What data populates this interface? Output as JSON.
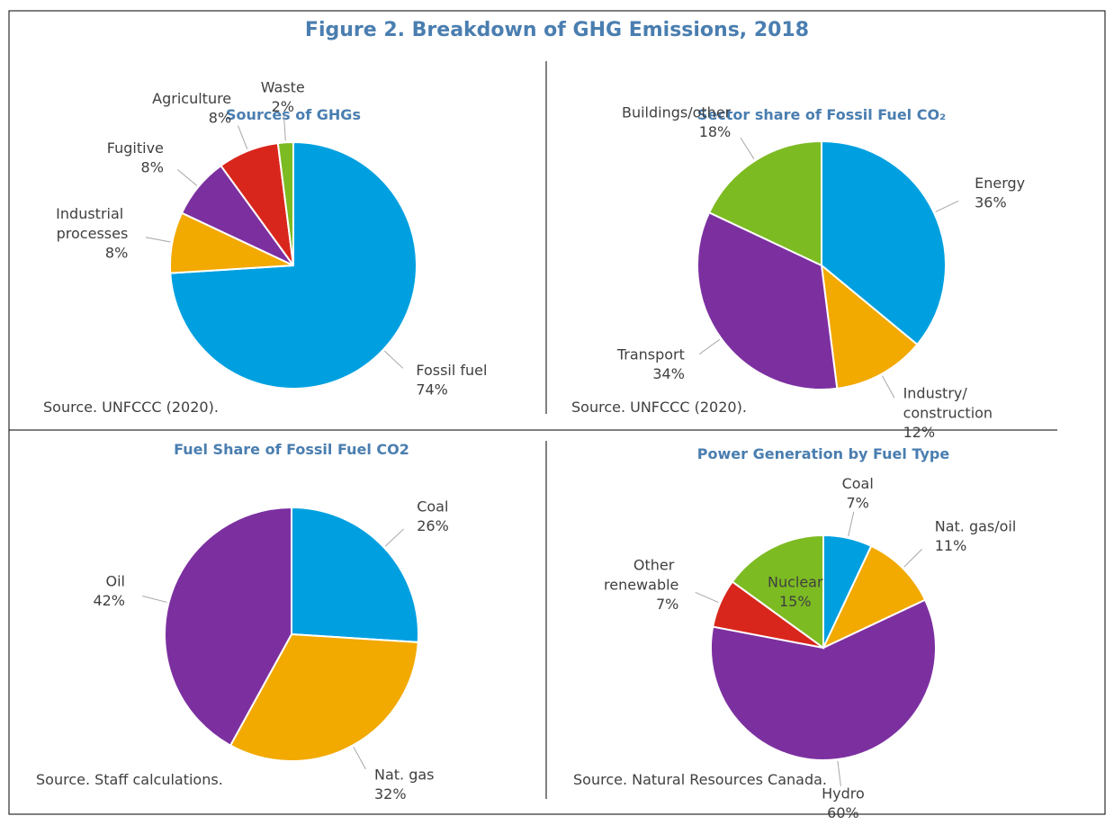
{
  "title": "Figure 2. Breakdown of GHG Emissions, 2018",
  "chart_data": [
    {
      "type": "pie",
      "title": "Sources of GHGs",
      "categories": [
        "Fossil fuel",
        "Industrial processes",
        "Fugitive",
        "Agriculture",
        "Waste"
      ],
      "values": [
        74,
        8,
        8,
        8,
        2
      ],
      "value_labels": [
        "74%",
        "8%",
        "8%",
        "8%",
        "2%"
      ],
      "colors": [
        "#00a0e0",
        "#f2a900",
        "#7c30a0",
        "#d9261c",
        "#7dbb22"
      ],
      "source": "Source. UNFCCC (2020)."
    },
    {
      "type": "pie",
      "title": "Sector share of Fossil Fuel CO₂",
      "categories": [
        "Energy",
        "Industry/construction",
        "Transport",
        "Buildings/other"
      ],
      "values": [
        36,
        12,
        34,
        18
      ],
      "value_labels": [
        "36%",
        "12%",
        "34%",
        "18%"
      ],
      "colors": [
        "#00a0e0",
        "#f2a900",
        "#7c30a0",
        "#7dbb22"
      ],
      "source": "Source. UNFCCC (2020)."
    },
    {
      "type": "pie",
      "title": "Fuel Share of Fossil Fuel CO2",
      "categories": [
        "Coal",
        "Nat. gas",
        "Oil"
      ],
      "values": [
        26,
        32,
        42
      ],
      "value_labels": [
        "26%",
        "32%",
        "42%"
      ],
      "colors": [
        "#00a0e0",
        "#f2a900",
        "#7c30a0"
      ],
      "source": "Source. Staff calculations."
    },
    {
      "type": "pie",
      "title": "Power Generation by Fuel Type",
      "categories": [
        "Coal",
        "Nat. gas/oil",
        "Hydro",
        "Other renewable",
        "Nuclear"
      ],
      "values": [
        7,
        11,
        60,
        7,
        15
      ],
      "value_labels": [
        "7%",
        "11%",
        "60%",
        "7%",
        "15%"
      ],
      "colors": [
        "#00a0e0",
        "#f2a900",
        "#7c30a0",
        "#d9261c",
        "#7dbb22"
      ],
      "source": "Source. Natural Resources Canada."
    }
  ]
}
